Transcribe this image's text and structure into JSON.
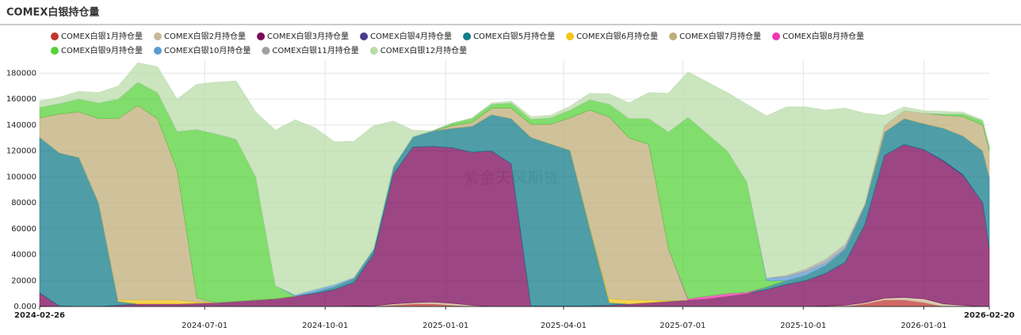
{
  "chart_data": {
    "type": "stacked_area",
    "title": "COMEX白银持仓量",
    "watermark": "紫金天风期货",
    "x": [
      "2024-02-26",
      "2024-03-12",
      "2024-03-27",
      "2024-04-11",
      "2024-04-26",
      "2024-05-11",
      "2024-05-26",
      "2024-06-10",
      "2024-06-25",
      "2024-07-10",
      "2024-07-25",
      "2024-08-09",
      "2024-08-24",
      "2024-09-08",
      "2024-09-23",
      "2024-10-08",
      "2024-10-23",
      "2024-11-07",
      "2024-11-22",
      "2024-12-07",
      "2024-12-22",
      "2025-01-06",
      "2025-01-21",
      "2025-02-05",
      "2025-02-20",
      "2025-03-07",
      "2025-03-22",
      "2025-04-06",
      "2025-04-21",
      "2025-05-06",
      "2025-05-21",
      "2025-06-05",
      "2025-06-20",
      "2025-07-05",
      "2025-07-20",
      "2025-08-04",
      "2025-08-19",
      "2025-09-03",
      "2025-09-18",
      "2025-10-03",
      "2025-10-18",
      "2025-11-02",
      "2025-11-17",
      "2025-12-02",
      "2025-12-17",
      "2026-01-01",
      "2026-01-16",
      "2026-01-31",
      "2026-02-15",
      "2026-02-20"
    ],
    "xlim": [
      "2024-02-26",
      "2026-02-20"
    ],
    "xticks": [
      "2024-02-26",
      "2024-07-01",
      "2024-10-01",
      "2025-01-01",
      "2025-04-01",
      "2025-07-01",
      "2025-10-01",
      "2026-01-01",
      "2026-02-20"
    ],
    "ylim": [
      0,
      190000
    ],
    "yticks": [
      {
        "value": 0,
        "label": "0.000"
      },
      20000,
      40000,
      60000,
      80000,
      100000,
      120000,
      140000,
      160000,
      180000
    ],
    "grid": true,
    "series": [
      {
        "name": "COMEX白银1月持仓量",
        "color": "#c23531",
        "values": [
          500,
          0,
          0,
          0,
          0,
          0,
          0,
          0,
          0,
          0,
          0,
          0,
          0,
          0,
          0,
          0,
          0,
          0,
          1000,
          2000,
          2000,
          1000,
          0,
          0,
          0,
          0,
          0,
          0,
          0,
          0,
          0,
          0,
          0,
          0,
          0,
          0,
          0,
          0,
          0,
          0,
          0,
          0,
          2000,
          5000,
          5000,
          3000,
          0,
          0,
          0,
          0
        ]
      },
      {
        "name": "COMEX白银2月持仓量",
        "color": "#c9b89a",
        "values": [
          0,
          0,
          0,
          0,
          0,
          0,
          0,
          0,
          0,
          0,
          0,
          0,
          0,
          0,
          0,
          0,
          500,
          500,
          1000,
          1000,
          1500,
          1500,
          1000,
          0,
          0,
          0,
          0,
          0,
          0,
          0,
          0,
          0,
          0,
          0,
          0,
          0,
          0,
          0,
          0,
          0,
          500,
          1000,
          1000,
          1500,
          2000,
          3000,
          2000,
          1000,
          0,
          0
        ]
      },
      {
        "name": "COMEX白银3月持仓量",
        "color": "#7b0a59",
        "values": [
          10000,
          500,
          0,
          0,
          1000,
          2000,
          2000,
          2000,
          2500,
          3000,
          4000,
          5000,
          6000,
          8000,
          10000,
          13000,
          18000,
          40000,
          100000,
          120000,
          120000,
          120000,
          118000,
          120000,
          110000,
          0,
          0,
          0,
          500,
          1000,
          2000,
          3000,
          4000,
          5000,
          6000,
          8000,
          10000,
          13000,
          17000,
          20000,
          25000,
          33000,
          60000,
          110000,
          118000,
          115000,
          110000,
          100000,
          80000,
          45000
        ]
      },
      {
        "name": "COMEX白银4月持仓量",
        "color": "#4b3a8f",
        "values": [
          0,
          0,
          0,
          0,
          0,
          0,
          0,
          0,
          0,
          0,
          0,
          0,
          0,
          0,
          0,
          0,
          0,
          0,
          0,
          0,
          0,
          0,
          0,
          0,
          0,
          500,
          500,
          500,
          0,
          0,
          0,
          0,
          0,
          0,
          0,
          0,
          0,
          0,
          0,
          0,
          0,
          0,
          0,
          0,
          0,
          0,
          500,
          500,
          0,
          0
        ]
      },
      {
        "name": "COMEX白银5月持仓量",
        "color": "#147c8a",
        "values": [
          120000,
          118000,
          115000,
          80000,
          3000,
          0,
          0,
          0,
          0,
          0,
          0,
          0,
          0,
          0,
          1000,
          2000,
          3000,
          4000,
          6000,
          8000,
          12000,
          15000,
          20000,
          28000,
          35000,
          130000,
          125000,
          120000,
          60000,
          2000,
          0,
          0,
          0,
          0,
          0,
          0,
          0,
          2000,
          3000,
          4000,
          6000,
          10000,
          15000,
          18000,
          20000,
          20000,
          25000,
          30000,
          40000,
          55000
        ]
      },
      {
        "name": "COMEX白银6月持仓量",
        "color": "#f5c518",
        "values": [
          0,
          0,
          0,
          0,
          1000,
          3000,
          3000,
          3000,
          1000,
          0,
          0,
          0,
          0,
          0,
          0,
          0,
          0,
          0,
          0,
          0,
          0,
          0,
          0,
          0,
          0,
          0,
          0,
          0,
          1000,
          3000,
          3000,
          2000,
          500,
          0,
          0,
          0,
          0,
          0,
          0,
          0,
          0,
          0,
          0,
          0,
          0,
          0,
          0,
          0,
          0,
          0
        ]
      },
      {
        "name": "COMEX白银7月持仓量",
        "color": "#bfae7a",
        "values": [
          15000,
          30000,
          35000,
          65000,
          140000,
          150000,
          140000,
          100000,
          3000,
          0,
          0,
          0,
          0,
          0,
          0,
          0,
          0,
          0,
          0,
          0,
          0,
          2000,
          3000,
          5000,
          8000,
          10000,
          15000,
          25000,
          90000,
          140000,
          125000,
          120000,
          40000,
          0,
          0,
          0,
          0,
          0,
          0,
          0,
          0,
          0,
          0,
          5000,
          6000,
          8000,
          10000,
          15000,
          20000,
          20000
        ]
      },
      {
        "name": "COMEX白银8月持仓量",
        "color": "#ec38b3",
        "values": [
          0,
          0,
          0,
          0,
          0,
          0,
          0,
          0,
          0,
          0,
          0,
          0,
          0,
          0,
          0,
          0,
          0,
          0,
          0,
          0,
          0,
          0,
          0,
          0,
          0,
          0,
          0,
          0,
          0,
          0,
          0,
          0,
          0,
          1000,
          2000,
          2000,
          1000,
          0,
          0,
          0,
          0,
          0,
          0,
          0,
          0,
          0,
          0,
          0,
          0,
          0
        ]
      },
      {
        "name": "COMEX白银9月持仓量",
        "color": "#57d13b",
        "values": [
          8000,
          8000,
          10000,
          12000,
          15000,
          18000,
          20000,
          30000,
          130000,
          130000,
          125000,
          95000,
          10000,
          0,
          0,
          0,
          0,
          0,
          0,
          0,
          0,
          2000,
          3000,
          3000,
          4000,
          4000,
          5000,
          6000,
          8000,
          10000,
          15000,
          20000,
          90000,
          140000,
          125000,
          110000,
          85000,
          5000,
          0,
          0,
          0,
          0,
          0,
          0,
          0,
          0,
          1000,
          2000,
          3000,
          3000
        ]
      },
      {
        "name": "COMEX白银10月持仓量",
        "color": "#5b9bd5",
        "values": [
          0,
          0,
          0,
          0,
          0,
          0,
          0,
          0,
          0,
          0,
          0,
          0,
          0,
          1000,
          2000,
          2000,
          1000,
          0,
          0,
          0,
          0,
          0,
          0,
          0,
          0,
          0,
          0,
          0,
          0,
          0,
          0,
          0,
          0,
          0,
          0,
          0,
          0,
          2000,
          3000,
          3000,
          2000,
          1000,
          0,
          0,
          0,
          0,
          0,
          0,
          0,
          0
        ]
      },
      {
        "name": "COMEX白银11月持仓量",
        "color": "#a0a0a0",
        "values": [
          0,
          0,
          0,
          0,
          0,
          0,
          0,
          0,
          0,
          0,
          0,
          0,
          0,
          0,
          0,
          0,
          0,
          0,
          0,
          0,
          0,
          0,
          0,
          0,
          0,
          0,
          0,
          0,
          0,
          0,
          0,
          0,
          0,
          0,
          0,
          0,
          0,
          0,
          1000,
          2000,
          3000,
          3000,
          1000,
          0,
          0,
          0,
          0,
          0,
          0,
          0
        ]
      },
      {
        "name": "COMEX白银12月持仓量",
        "color": "#b9dca9",
        "values": [
          5000,
          5000,
          6000,
          8000,
          10000,
          15000,
          20000,
          25000,
          35000,
          40000,
          45000,
          50000,
          120000,
          135000,
          125000,
          110000,
          105000,
          95000,
          35000,
          5000,
          0,
          0,
          500,
          1000,
          1500,
          2000,
          2000,
          3000,
          5000,
          8000,
          12000,
          20000,
          30000,
          35000,
          40000,
          45000,
          60000,
          125000,
          130000,
          125000,
          115000,
          105000,
          70000,
          8000,
          3000,
          2000,
          2000,
          1500,
          1000,
          1000
        ]
      }
    ]
  }
}
